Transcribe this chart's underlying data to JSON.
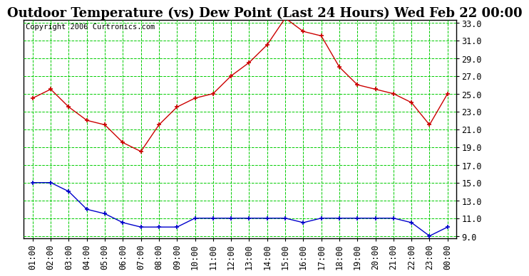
{
  "title": "Outdoor Temperature (vs) Dew Point (Last 24 Hours) Wed Feb 22 00:00",
  "copyright": "Copyright 2006 Curtronics.com",
  "x_labels": [
    "01:00",
    "02:00",
    "03:00",
    "04:00",
    "05:00",
    "06:00",
    "07:00",
    "08:00",
    "09:00",
    "10:00",
    "11:00",
    "12:00",
    "13:00",
    "14:00",
    "15:00",
    "16:00",
    "17:00",
    "18:00",
    "19:00",
    "20:00",
    "21:00",
    "22:00",
    "23:00",
    "00:00"
  ],
  "temp_data": [
    24.5,
    25.5,
    23.5,
    22.0,
    21.5,
    19.5,
    18.5,
    21.5,
    23.5,
    24.5,
    25.0,
    27.0,
    28.5,
    30.5,
    33.5,
    32.0,
    31.5,
    28.0,
    26.0,
    25.5,
    25.0,
    24.0,
    21.5,
    25.0
  ],
  "dew_data": [
    15.0,
    15.0,
    14.0,
    12.0,
    11.5,
    10.5,
    10.0,
    10.0,
    10.0,
    11.0,
    11.0,
    11.0,
    11.0,
    11.0,
    11.0,
    10.5,
    11.0,
    11.0,
    11.0,
    11.0,
    11.0,
    10.5,
    9.0,
    10.0
  ],
  "temp_color": "#cc0000",
  "dew_color": "#0000cc",
  "bg_color": "#ffffff",
  "plot_bg_color": "#ffffff",
  "grid_color": "#00cc00",
  "ylim_min": 9.0,
  "ylim_max": 33.0,
  "yticks": [
    9.0,
    11.0,
    13.0,
    15.0,
    17.0,
    19.0,
    21.0,
    23.0,
    25.0,
    27.0,
    29.0,
    31.0,
    33.0
  ],
  "title_fontsize": 13,
  "tick_fontsize": 8.5,
  "copyright_fontsize": 7.5
}
